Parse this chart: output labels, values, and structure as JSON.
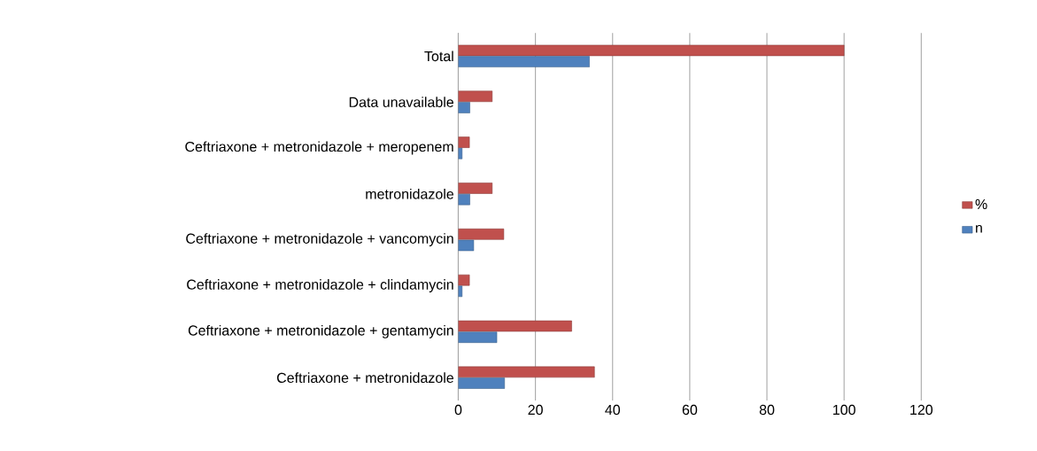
{
  "chart_data": {
    "type": "bar",
    "orientation": "horizontal",
    "categories": [
      "Total",
      "Data unavailable",
      "Ceftriaxone + metronidazole + meropenem",
      "metronidazole",
      "Ceftriaxone + metronidazole + vancomycin",
      "Ceftriaxone + metronidazole + clindamycin",
      "Ceftriaxone + metronidazole + gentamycin",
      "Ceftriaxone + metronidazole"
    ],
    "series": [
      {
        "name": "%",
        "color": "#c0504d",
        "values": [
          100,
          8.8,
          2.9,
          8.8,
          11.8,
          2.9,
          29.4,
          35.3
        ]
      },
      {
        "name": "n",
        "color": "#4f81bd",
        "values": [
          34,
          3,
          1,
          3,
          4,
          1,
          10,
          12
        ]
      }
    ],
    "xlim": [
      0,
      120
    ],
    "xticks": [
      0,
      20,
      40,
      60,
      80,
      100,
      120
    ],
    "grid": "x",
    "legend": "right"
  }
}
